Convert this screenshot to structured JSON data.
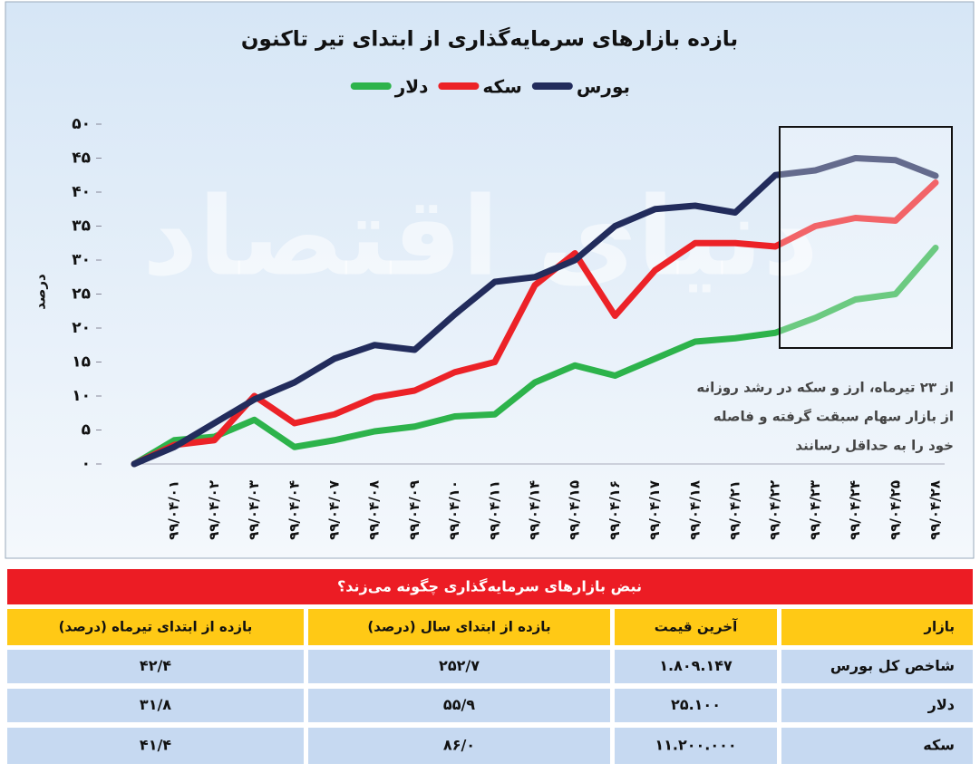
{
  "chart_data": {
    "type": "line",
    "title": "بازده بازارهای سرمایه‌گذاری از ابتدای تیر تاکنون",
    "ylabel": "درصد",
    "watermark": "دنیای اقتصاد",
    "annotation": [
      "از ۲۳ تیرماه، ارز و سکه در رشد روزانه",
      "از بازار سهام سبقت گرفته و فاصله",
      "خود را به حداقل رسانند"
    ],
    "categories": [
      null,
      "۹۹/۰۴/۰۱",
      "۹۹/۰۴/۰۲",
      "۹۹/۰۴/۰۳",
      "۹۹/۰۴/۰۴",
      "۹۹/۰۴/۰۷",
      "۹۹/۰۴/۰۸",
      "۹۹/۰۴/۰۹",
      "۹۹/۰۴/۱۰",
      "۹۹/۰۴/۱۱",
      "۹۹/۰۴/۱۴",
      "۹۹/۰۴/۱۵",
      "۹۹/۰۴/۱۶",
      "۹۹/۰۴/۱۷",
      "۹۹/۰۴/۱۸",
      "۹۹/۰۴/۲۱",
      "۹۹/۰۴/۲۲",
      "۹۹/۰۴/۲۳",
      "۹۹/۰۴/۲۴",
      "۹۹/۰۴/۲۵",
      "۹۹/۰۴/۲۸"
    ],
    "series": [
      {
        "name": "بورس",
        "color": "#222c5c",
        "values": [
          0,
          2.5,
          6,
          9.5,
          12,
          15.5,
          17.5,
          16.8,
          22,
          26.8,
          27.5,
          30,
          35,
          37.5,
          38,
          37,
          42.5,
          43.2,
          45,
          44.7,
          42.4
        ]
      },
      {
        "name": "سکه",
        "color": "#ec2227",
        "values": [
          0,
          2.8,
          3.5,
          10,
          6,
          7.3,
          9.8,
          10.8,
          13.5,
          15,
          26.3,
          31,
          21.8,
          28.5,
          32.5,
          32.5,
          32,
          35,
          36.2,
          35.8,
          41.4
        ]
      },
      {
        "name": "دلار",
        "color": "#2db34b",
        "values": [
          0,
          3.5,
          4,
          6.5,
          2.5,
          3.5,
          4.8,
          5.5,
          7,
          7.3,
          12,
          14.5,
          13,
          15.5,
          18,
          18.5,
          19.3,
          21.5,
          24.2,
          25,
          31.8
        ]
      }
    ],
    "ylim": [
      0,
      50
    ],
    "yticks": [
      {
        "value": 0,
        "label": "۰"
      },
      {
        "value": 5,
        "label": "۵"
      },
      {
        "value": 10,
        "label": "۱۰"
      },
      {
        "value": 15,
        "label": "۱۵"
      },
      {
        "value": 20,
        "label": "۲۰"
      },
      {
        "value": 25,
        "label": "۲۵"
      },
      {
        "value": 30,
        "label": "۳۰"
      },
      {
        "value": 35,
        "label": "۳۵"
      },
      {
        "value": 40,
        "label": "۴۰"
      },
      {
        "value": 45,
        "label": "۴۵"
      },
      {
        "value": 50,
        "label": "۵۰"
      }
    ],
    "grid": false
  },
  "table": {
    "title": "نبض بازارهای سرمایه‌گذاری چگونه می‌زند؟",
    "header": [
      "بازار",
      "آخرین قیمت",
      "بازده از ابتدای سال (درصد)",
      "بازده از ابتدای تیرماه (درصد)"
    ],
    "rows": [
      [
        "شاخص کل بورس",
        "۱.۸۰۹.۱۴۷",
        "۲۵۲/۷",
        "۴۲/۴"
      ],
      [
        "دلار",
        "۲۵.۱۰۰",
        "۵۵/۹",
        "۳۱/۸"
      ],
      [
        "سکه",
        "۱۱.۲۰۰.۰۰۰",
        "۸۶/۰",
        "۴۱/۴"
      ]
    ]
  }
}
